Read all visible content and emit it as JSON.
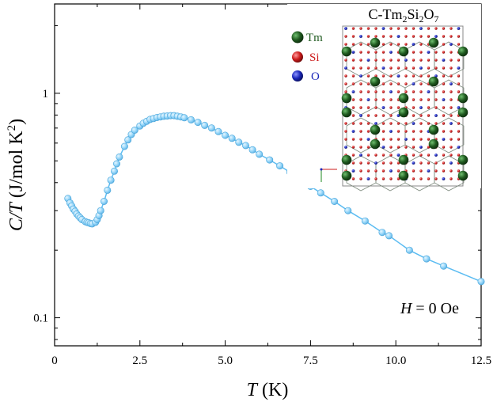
{
  "chart_data": {
    "type": "line",
    "xlabel": {
      "italic": "T",
      "rest": " (K)"
    },
    "ylabel": {
      "italic": "C/T",
      "rest": " (J/mol K",
      "sup": "2",
      "close": ")"
    },
    "xlim": [
      0,
      12.5
    ],
    "ylim": [
      0.075,
      2.5
    ],
    "yscale": "log",
    "x_ticks": [
      0,
      2.5,
      5.0,
      7.5,
      10.0,
      12.5
    ],
    "x_tick_labels": [
      "0",
      "2.5",
      "5.0",
      "7.5",
      "10.0",
      "12.5"
    ],
    "y_ticks": [
      0.1,
      1
    ],
    "y_tick_labels": [
      "0.1",
      "1"
    ],
    "annotation": {
      "italic": "H",
      "rest": " = 0 Oe"
    },
    "inset": {
      "title": {
        "base": "C-Tm",
        "sub1": "2",
        "mid": "Si",
        "sub2": "2",
        "end": "O",
        "sub3": "7"
      },
      "legend": [
        {
          "label": "Tm",
          "color": "#1f5a1f"
        },
        {
          "label": "Si",
          "color": "#cc1b1b"
        },
        {
          "label": "O",
          "color": "#1b27b8"
        }
      ]
    },
    "series": [
      {
        "name": "C/T",
        "color": "#5bbcf2",
        "marker_color": "#8fd3f8",
        "x": [
          0.39,
          0.45,
          0.5,
          0.55,
          0.6,
          0.65,
          0.7,
          0.75,
          0.8,
          0.9,
          0.95,
          1.0,
          1.05,
          1.1,
          1.2,
          1.25,
          1.3,
          1.35,
          1.45,
          1.55,
          1.65,
          1.75,
          1.82,
          1.9,
          2.05,
          2.15,
          2.25,
          2.35,
          2.5,
          2.6,
          2.7,
          2.8,
          2.9,
          3.0,
          3.1,
          3.2,
          3.3,
          3.4,
          3.5,
          3.6,
          3.7,
          3.8,
          4.0,
          4.2,
          4.4,
          4.6,
          4.8,
          5.0,
          5.2,
          5.4,
          5.6,
          5.8,
          6.0,
          6.3,
          6.6,
          6.9,
          7.2,
          7.5,
          7.8,
          8.2,
          8.6,
          9.1,
          9.6,
          9.8,
          10.4,
          10.9,
          11.4,
          12.5
        ],
        "y": [
          0.34,
          0.325,
          0.315,
          0.305,
          0.298,
          0.29,
          0.284,
          0.279,
          0.274,
          0.268,
          0.266,
          0.265,
          0.263,
          0.262,
          0.266,
          0.274,
          0.285,
          0.3,
          0.33,
          0.37,
          0.41,
          0.45,
          0.485,
          0.52,
          0.58,
          0.62,
          0.655,
          0.685,
          0.715,
          0.735,
          0.75,
          0.765,
          0.772,
          0.78,
          0.785,
          0.79,
          0.792,
          0.795,
          0.795,
          0.79,
          0.785,
          0.778,
          0.762,
          0.742,
          0.72,
          0.7,
          0.675,
          0.65,
          0.63,
          0.605,
          0.585,
          0.56,
          0.535,
          0.505,
          0.475,
          0.445,
          0.415,
          0.385,
          0.36,
          0.33,
          0.3,
          0.27,
          0.24,
          0.232,
          0.2,
          0.183,
          0.17,
          0.145
        ]
      }
    ]
  }
}
